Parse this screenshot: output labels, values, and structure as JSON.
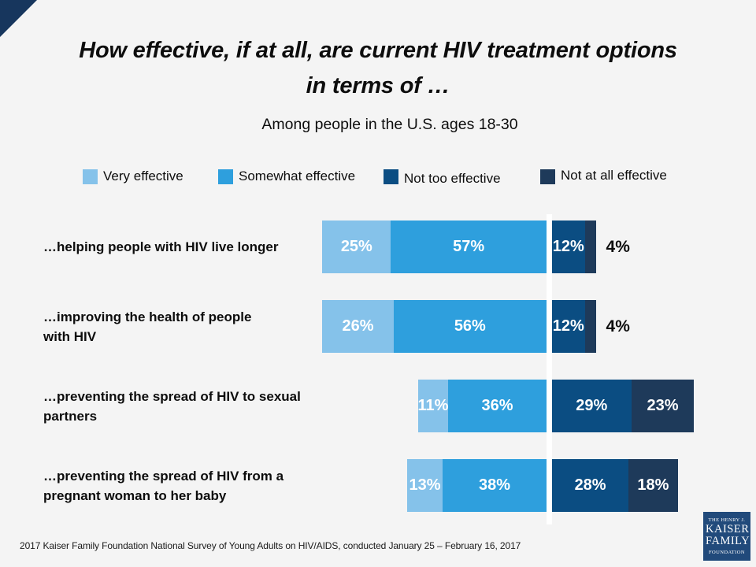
{
  "title": {
    "lines": [
      "How effective, if at all, are current HIV treatment options",
      "in terms of …"
    ]
  },
  "subtitle": "Among people in the U.S. ages 18-30",
  "legend": [
    {
      "label": "Very effective",
      "color": "#85C2EA"
    },
    {
      "label": "Somewhat effective",
      "color": "#2E9FDD"
    },
    {
      "label": "Not too effective",
      "color": "#0B4D82"
    },
    {
      "label": "Not at all effective",
      "color": "#1E3A5A"
    }
  ],
  "chart_data": {
    "type": "diverging-stacked-bar",
    "orientation": "horizontal",
    "unit": "%",
    "value_labels": true,
    "divider": "white gap separates effective (left) from not-effective (right) segments",
    "categories": [
      "…helping people with HIV live longer",
      "…improving the health of people\nwith HIV",
      "…preventing the spread of HIV to sexual\npartners",
      "…preventing the spread of HIV from a\npregnant woman to her baby"
    ],
    "series": [
      {
        "name": "Very effective",
        "color": "#85C2EA",
        "values": [
          25,
          26,
          11,
          13
        ]
      },
      {
        "name": "Somewhat effective",
        "color": "#2E9FDD",
        "values": [
          57,
          56,
          36,
          38
        ]
      },
      {
        "name": "Not too effective",
        "color": "#0B4D82",
        "values": [
          12,
          12,
          29,
          28
        ]
      },
      {
        "name": "Not at all effective",
        "color": "#1E3A5A",
        "values": [
          4,
          4,
          23,
          18
        ]
      }
    ]
  },
  "footer": {
    "source": "2017 Kaiser Family Foundation National Survey of Young Adults on HIV/AIDS, conducted January 25 – February 16, 2017"
  },
  "logo": {
    "line1": "THE HENRY J.",
    "line2": "KAISER",
    "line3": "FAMILY",
    "line4": "FOUNDATION"
  },
  "colors": {
    "background": "#F4F4F4",
    "divider_gap": "#FFFFFF",
    "logo_navy": "#214A7B",
    "corner_triangle": "#17365D",
    "text": "#0D0D0D"
  }
}
